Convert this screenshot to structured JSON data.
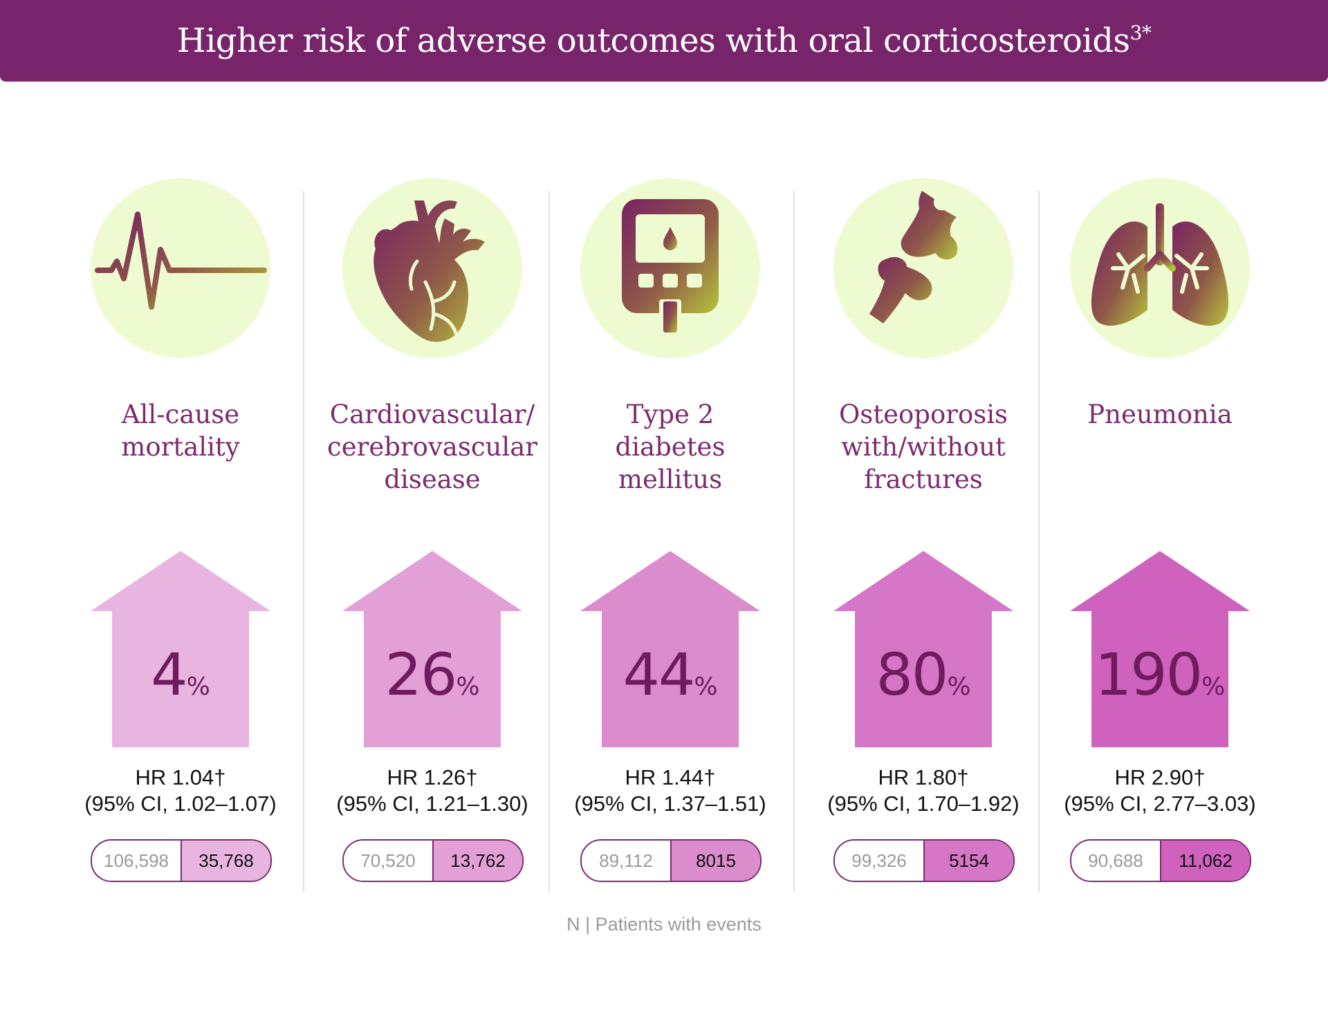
{
  "header": {
    "title": "Higher risk of adverse outcomes with oral corticosteroids",
    "title_sup": "3*"
  },
  "colors": {
    "banner": "#78246a",
    "circle": "#eefbd0",
    "title_text": "#7b2a6e",
    "arrow_1": "#e8b4e0",
    "arrow_2": "#e2a0d6",
    "arrow_3": "#da8ccd",
    "arrow_4": "#d576c6",
    "arrow_5": "#ce62bd"
  },
  "columns": [
    {
      "icon": "ecg-heartbeat-icon",
      "title_lines": [
        "All-cause",
        "mortality",
        ""
      ],
      "pct": "4",
      "pct_symbol": "%",
      "hr": "HR 1.04†",
      "ci": "(95% CI, 1.02–1.07)",
      "n": "106,598",
      "events": "35,768"
    },
    {
      "icon": "heart-icon",
      "title_lines": [
        "Cardiovascular/",
        "cerebrovascular",
        "disease"
      ],
      "pct": "26",
      "pct_symbol": "%",
      "hr": "HR 1.26†",
      "ci": "(95% CI, 1.21–1.30)",
      "n": "70,520",
      "events": "13,762"
    },
    {
      "icon": "glucose-meter-icon",
      "title_lines": [
        "Type 2",
        "diabetes",
        "mellitus"
      ],
      "pct": "44",
      "pct_symbol": "%",
      "hr": "HR 1.44†",
      "ci": "(95% CI, 1.37–1.51)",
      "n": "89,112",
      "events": "8015"
    },
    {
      "icon": "bone-joint-icon",
      "title_lines": [
        "Osteoporosis",
        "with/without",
        "fractures"
      ],
      "pct": "80",
      "pct_symbol": "%",
      "hr": "HR 1.80†",
      "ci": "(95% CI, 1.70–1.92)",
      "n": "99,326",
      "events": "5154"
    },
    {
      "icon": "lungs-icon",
      "title_lines": [
        "Pneumonia",
        "",
        ""
      ],
      "pct": "190",
      "pct_symbol": "%",
      "hr": "HR 2.90†",
      "ci": "(95% CI, 2.77–3.03)",
      "n": "90,688",
      "events": "11,062"
    }
  ],
  "legend": {
    "text": "N | Patients with events"
  }
}
